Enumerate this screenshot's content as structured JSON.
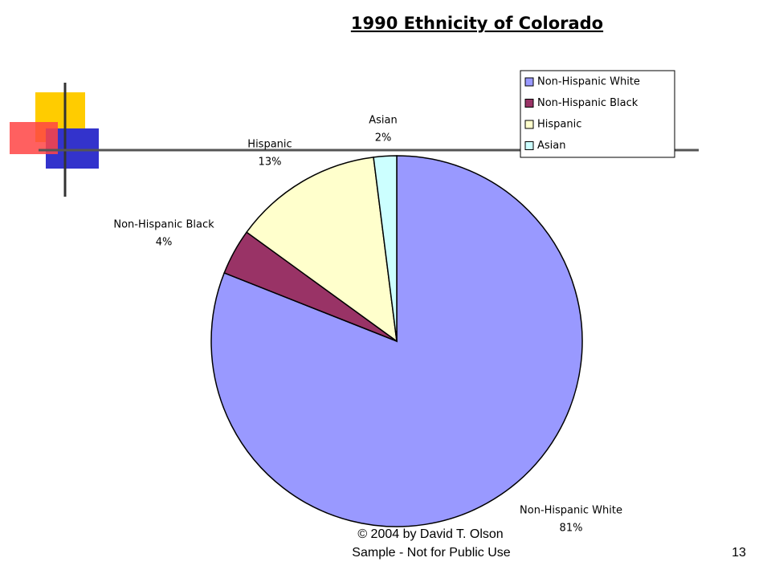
{
  "chart_data": {
    "type": "pie",
    "title": "1990 Ethnicity of Colorado",
    "categories": [
      "Non-Hispanic White",
      "Non-Hispanic Black",
      "Hispanic",
      "Asian"
    ],
    "values": [
      81,
      4,
      13,
      2
    ],
    "value_labels": [
      "81%",
      "4%",
      "13%",
      "2%"
    ],
    "colors": [
      "#9999ff",
      "#993366",
      "#ffffcc",
      "#ccffff"
    ],
    "legend": "top-right"
  },
  "footer": {
    "copyright": "© 2004 by David T. Olson",
    "note": "Sample - Not for Public Use",
    "page": "13"
  }
}
